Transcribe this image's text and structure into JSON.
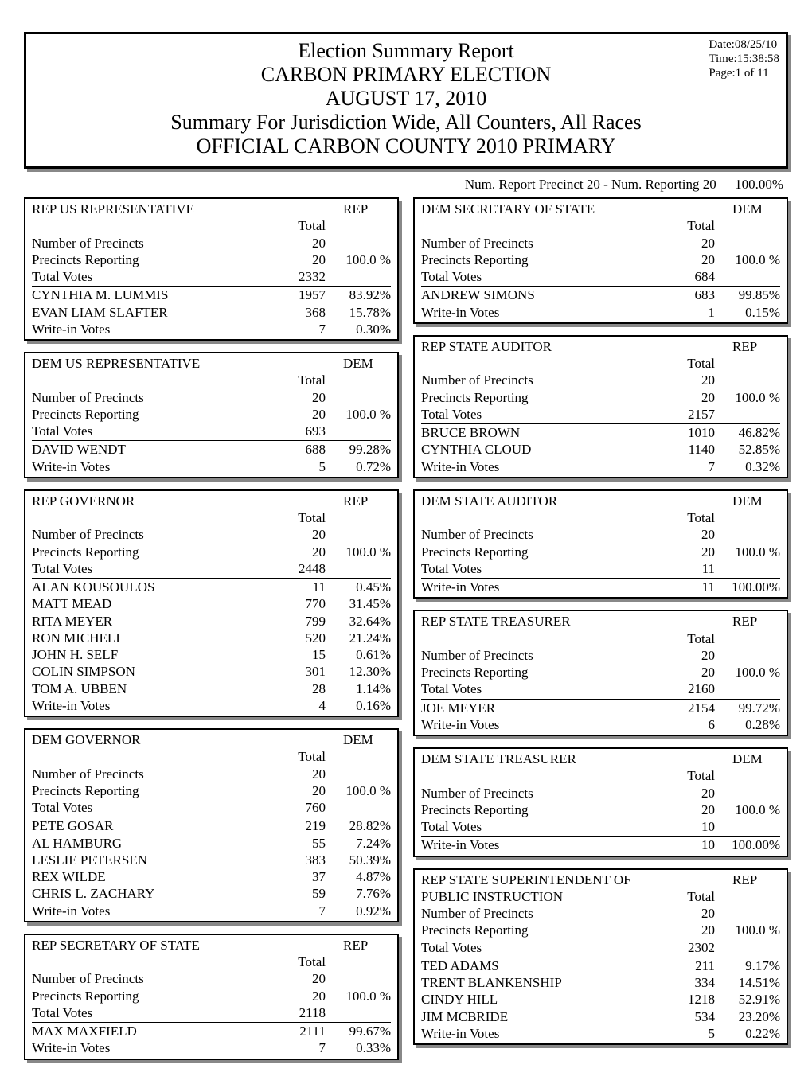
{
  "header": {
    "title1": "Election Summary Report",
    "title2": "CARBON PRIMARY ELECTION",
    "title3": "AUGUST 17, 2010",
    "title4": "Summary For Jurisdiction Wide, All Counters, All Races",
    "title5": "OFFICIAL CARBON COUNTY 2010 PRIMARY",
    "date": "Date:08/25/10",
    "time": "Time:15:38:58",
    "page": "Page:1 of 11"
  },
  "summary_line": {
    "text": "Num. Report Precinct 20 - Num. Reporting 20",
    "pct": "100.00%"
  },
  "labels": {
    "total": "Total",
    "num_precincts": "Number of Precincts",
    "precincts_reporting": "Precincts Reporting",
    "total_votes": "Total Votes",
    "writein": "Write-in Votes"
  },
  "left": [
    {
      "title": "REP US REPRESENTATIVE",
      "party": "REP",
      "precincts": "20",
      "reporting": "20",
      "reporting_pct": "100.0  %",
      "votes": "2332",
      "cands": [
        {
          "n": "CYNTHIA M. LUMMIS",
          "v": "1957",
          "p": "83.92%"
        },
        {
          "n": "EVAN LIAM SLAFTER",
          "v": "368",
          "p": "15.78%"
        },
        {
          "n": "Write-in Votes",
          "v": "7",
          "p": "0.30%"
        }
      ]
    },
    {
      "title": "DEM US REPRESENTATIVE",
      "party": "DEM",
      "precincts": "20",
      "reporting": "20",
      "reporting_pct": "100.0  %",
      "votes": "693",
      "cands": [
        {
          "n": "DAVID WENDT",
          "v": "688",
          "p": "99.28%"
        },
        {
          "n": "Write-in Votes",
          "v": "5",
          "p": "0.72%"
        }
      ]
    },
    {
      "title": "REP GOVERNOR",
      "party": "REP",
      "precincts": "20",
      "reporting": "20",
      "reporting_pct": "100.0  %",
      "votes": "2448",
      "cands": [
        {
          "n": "ALAN KOUSOULOS",
          "v": "11",
          "p": "0.45%"
        },
        {
          "n": "MATT MEAD",
          "v": "770",
          "p": "31.45%"
        },
        {
          "n": "RITA MEYER",
          "v": "799",
          "p": "32.64%"
        },
        {
          "n": "RON MICHELI",
          "v": "520",
          "p": "21.24%"
        },
        {
          "n": "JOHN H. SELF",
          "v": "15",
          "p": "0.61%"
        },
        {
          "n": "COLIN SIMPSON",
          "v": "301",
          "p": "12.30%"
        },
        {
          "n": "TOM A. UBBEN",
          "v": "28",
          "p": "1.14%"
        },
        {
          "n": "Write-in Votes",
          "v": "4",
          "p": "0.16%"
        }
      ]
    },
    {
      "title": "DEM GOVERNOR",
      "party": "DEM",
      "precincts": "20",
      "reporting": "20",
      "reporting_pct": "100.0  %",
      "votes": "760",
      "cands": [
        {
          "n": "PETE GOSAR",
          "v": "219",
          "p": "28.82%"
        },
        {
          "n": "AL HAMBURG",
          "v": "55",
          "p": "7.24%"
        },
        {
          "n": "LESLIE PETERSEN",
          "v": "383",
          "p": "50.39%"
        },
        {
          "n": "REX WILDE",
          "v": "37",
          "p": "4.87%"
        },
        {
          "n": "CHRIS L. ZACHARY",
          "v": "59",
          "p": "7.76%"
        },
        {
          "n": "Write-in Votes",
          "v": "7",
          "p": "0.92%"
        }
      ]
    },
    {
      "title": "REP SECRETARY OF STATE",
      "party": "REP",
      "precincts": "20",
      "reporting": "20",
      "reporting_pct": "100.0  %",
      "votes": "2118",
      "cands": [
        {
          "n": "MAX MAXFIELD",
          "v": "2111",
          "p": "99.67%"
        },
        {
          "n": "Write-in Votes",
          "v": "7",
          "p": "0.33%"
        }
      ]
    }
  ],
  "right": [
    {
      "title": "DEM SECRETARY OF STATE",
      "party": "DEM",
      "precincts": "20",
      "reporting": "20",
      "reporting_pct": "100.0  %",
      "votes": "684",
      "cands": [
        {
          "n": "ANDREW SIMONS",
          "v": "683",
          "p": "99.85%"
        },
        {
          "n": "Write-in Votes",
          "v": "1",
          "p": "0.15%"
        }
      ]
    },
    {
      "title": "REP STATE AUDITOR",
      "party": "REP",
      "precincts": "20",
      "reporting": "20",
      "reporting_pct": "100.0  %",
      "votes": "2157",
      "cands": [
        {
          "n": "BRUCE BROWN",
          "v": "1010",
          "p": "46.82%"
        },
        {
          "n": "CYNTHIA CLOUD",
          "v": "1140",
          "p": "52.85%"
        },
        {
          "n": "Write-in Votes",
          "v": "7",
          "p": "0.32%"
        }
      ]
    },
    {
      "title": "DEM STATE AUDITOR",
      "party": "DEM",
      "precincts": "20",
      "reporting": "20",
      "reporting_pct": "100.0  %",
      "votes": "11",
      "cands": [
        {
          "n": "Write-in Votes",
          "v": "11",
          "p": "100.00%"
        }
      ]
    },
    {
      "title": "REP STATE TREASURER",
      "party": "REP",
      "precincts": "20",
      "reporting": "20",
      "reporting_pct": "100.0  %",
      "votes": "2160",
      "cands": [
        {
          "n": "JOE MEYER",
          "v": "2154",
          "p": "99.72%"
        },
        {
          "n": "Write-in Votes",
          "v": "6",
          "p": "0.28%"
        }
      ]
    },
    {
      "title": "DEM STATE TREASURER",
      "party": "DEM",
      "precincts": "20",
      "reporting": "20",
      "reporting_pct": "100.0  %",
      "votes": "10",
      "cands": [
        {
          "n": "Write-in Votes",
          "v": "10",
          "p": "100.00%"
        }
      ]
    },
    {
      "title": "REP STATE SUPERINTENDENT OF PUBLIC INSTRUCTION",
      "party": "REP",
      "title_wrap": true,
      "precincts": "20",
      "reporting": "20",
      "reporting_pct": "100.0  %",
      "votes": "2302",
      "cands": [
        {
          "n": "TED ADAMS",
          "v": "211",
          "p": "9.17%"
        },
        {
          "n": "TRENT BLANKENSHIP",
          "v": "334",
          "p": "14.51%"
        },
        {
          "n": "CINDY HILL",
          "v": "1218",
          "p": "52.91%"
        },
        {
          "n": "JIM MCBRIDE",
          "v": "534",
          "p": "23.20%"
        },
        {
          "n": "Write-in Votes",
          "v": "5",
          "p": "0.22%"
        }
      ]
    }
  ]
}
